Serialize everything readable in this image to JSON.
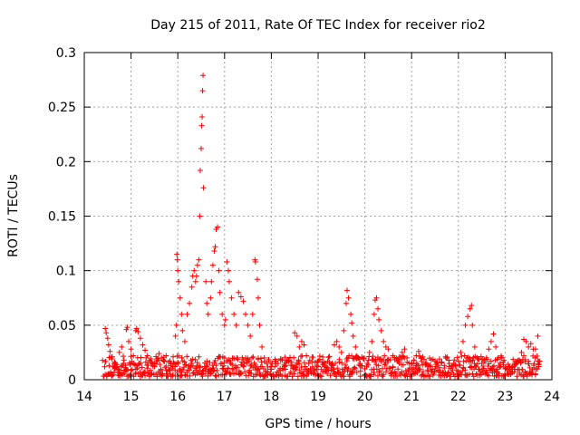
{
  "chart_data": {
    "type": "scatter",
    "title": "Day 215 of 2011, Rate Of TEC Index for receiver rio2",
    "xlabel": "GPS time / hours",
    "ylabel": "ROTI / TECUs",
    "xlim": [
      14,
      24
    ],
    "ylim": [
      0,
      0.3
    ],
    "x_ticks": [
      14,
      15,
      16,
      17,
      18,
      19,
      20,
      21,
      22,
      23,
      24
    ],
    "y_ticks": [
      0,
      0.05,
      0.1,
      0.15,
      0.2,
      0.25,
      0.3
    ],
    "x_tick_labels": [
      "14",
      "15",
      "16",
      "17",
      "18",
      "19",
      "20",
      "21",
      "22",
      "23",
      "24"
    ],
    "y_tick_labels": [
      "0",
      "0.05",
      "0.1",
      "0.15",
      "0.2",
      "0.25",
      "0.3"
    ],
    "grid": true,
    "marker": "+",
    "color": "#ff0000",
    "series": [
      {
        "name": "rio2",
        "points": [
          [
            14.45,
            0.047
          ],
          [
            14.47,
            0.043
          ],
          [
            14.5,
            0.038
          ],
          [
            14.52,
            0.032
          ],
          [
            14.55,
            0.026
          ],
          [
            14.6,
            0.021
          ],
          [
            14.65,
            0.016
          ],
          [
            14.7,
            0.012
          ],
          [
            14.75,
            0.025
          ],
          [
            14.8,
            0.03
          ],
          [
            14.85,
            0.018
          ],
          [
            14.9,
            0.046
          ],
          [
            14.92,
            0.048
          ],
          [
            14.95,
            0.035
          ],
          [
            15.0,
            0.028
          ],
          [
            15.05,
            0.022
          ],
          [
            15.1,
            0.045
          ],
          [
            15.12,
            0.047
          ],
          [
            15.15,
            0.044
          ],
          [
            15.2,
            0.038
          ],
          [
            15.25,
            0.032
          ],
          [
            15.3,
            0.027
          ],
          [
            15.35,
            0.022
          ],
          [
            15.4,
            0.018
          ],
          [
            15.45,
            0.015
          ],
          [
            15.5,
            0.012
          ],
          [
            15.55,
            0.019
          ],
          [
            15.6,
            0.024
          ],
          [
            15.65,
            0.02
          ],
          [
            15.7,
            0.017
          ],
          [
            15.75,
            0.022
          ],
          [
            15.8,
            0.016
          ],
          [
            15.85,
            0.013
          ],
          [
            15.9,
            0.021
          ],
          [
            15.95,
            0.04
          ],
          [
            15.97,
            0.05
          ],
          [
            15.98,
            0.115
          ],
          [
            15.99,
            0.11
          ],
          [
            16.0,
            0.1
          ],
          [
            16.02,
            0.09
          ],
          [
            16.05,
            0.075
          ],
          [
            16.08,
            0.06
          ],
          [
            16.1,
            0.045
          ],
          [
            16.15,
            0.035
          ],
          [
            16.2,
            0.06
          ],
          [
            16.25,
            0.07
          ],
          [
            16.3,
            0.085
          ],
          [
            16.32,
            0.095
          ],
          [
            16.35,
            0.1
          ],
          [
            16.38,
            0.09
          ],
          [
            16.4,
            0.095
          ],
          [
            16.42,
            0.105
          ],
          [
            16.45,
            0.11
          ],
          [
            16.47,
            0.15
          ],
          [
            16.48,
            0.192
          ],
          [
            16.5,
            0.212
          ],
          [
            16.51,
            0.233
          ],
          [
            16.52,
            0.241
          ],
          [
            16.53,
            0.265
          ],
          [
            16.54,
            0.279
          ],
          [
            16.55,
            0.176
          ],
          [
            16.6,
            0.09
          ],
          [
            16.62,
            0.07
          ],
          [
            16.65,
            0.06
          ],
          [
            16.7,
            0.075
          ],
          [
            16.72,
            0.09
          ],
          [
            16.75,
            0.105
          ],
          [
            16.78,
            0.118
          ],
          [
            16.8,
            0.122
          ],
          [
            16.82,
            0.138
          ],
          [
            16.85,
            0.14
          ],
          [
            16.88,
            0.1
          ],
          [
            16.9,
            0.08
          ],
          [
            16.95,
            0.06
          ],
          [
            17.0,
            0.05
          ],
          [
            17.02,
            0.055
          ],
          [
            17.05,
            0.108
          ],
          [
            17.08,
            0.1
          ],
          [
            17.1,
            0.09
          ],
          [
            17.15,
            0.075
          ],
          [
            17.2,
            0.06
          ],
          [
            17.25,
            0.05
          ],
          [
            17.3,
            0.08
          ],
          [
            17.35,
            0.076
          ],
          [
            17.4,
            0.072
          ],
          [
            17.45,
            0.06
          ],
          [
            17.5,
            0.05
          ],
          [
            17.55,
            0.04
          ],
          [
            17.6,
            0.06
          ],
          [
            17.65,
            0.11
          ],
          [
            17.66,
            0.108
          ],
          [
            17.7,
            0.092
          ],
          [
            17.72,
            0.075
          ],
          [
            17.75,
            0.05
          ],
          [
            17.8,
            0.03
          ],
          [
            17.85,
            0.02
          ],
          [
            17.9,
            0.015
          ],
          [
            18.0,
            0.012
          ],
          [
            18.1,
            0.015
          ],
          [
            18.2,
            0.018
          ],
          [
            18.3,
            0.013
          ],
          [
            18.4,
            0.02
          ],
          [
            18.5,
            0.043
          ],
          [
            18.55,
            0.04
          ],
          [
            18.6,
            0.03
          ],
          [
            18.65,
            0.035
          ],
          [
            18.7,
            0.032
          ],
          [
            18.75,
            0.022
          ],
          [
            18.8,
            0.015
          ],
          [
            18.9,
            0.01
          ],
          [
            19.0,
            0.012
          ],
          [
            19.1,
            0.014
          ],
          [
            19.2,
            0.011
          ],
          [
            19.3,
            0.015
          ],
          [
            19.35,
            0.032
          ],
          [
            19.4,
            0.035
          ],
          [
            19.45,
            0.03
          ],
          [
            19.5,
            0.025
          ],
          [
            19.55,
            0.045
          ],
          [
            19.6,
            0.07
          ],
          [
            19.62,
            0.082
          ],
          [
            19.65,
            0.075
          ],
          [
            19.7,
            0.06
          ],
          [
            19.72,
            0.052
          ],
          [
            19.75,
            0.04
          ],
          [
            19.8,
            0.03
          ],
          [
            19.85,
            0.02
          ],
          [
            19.9,
            0.015
          ],
          [
            20.0,
            0.01
          ],
          [
            20.05,
            0.015
          ],
          [
            20.1,
            0.025
          ],
          [
            20.15,
            0.035
          ],
          [
            20.2,
            0.06
          ],
          [
            20.22,
            0.073
          ],
          [
            20.25,
            0.075
          ],
          [
            20.28,
            0.065
          ],
          [
            20.3,
            0.055
          ],
          [
            20.35,
            0.045
          ],
          [
            20.4,
            0.035
          ],
          [
            20.45,
            0.03
          ],
          [
            20.5,
            0.028
          ],
          [
            20.6,
            0.022
          ],
          [
            20.7,
            0.018
          ],
          [
            20.8,
            0.025
          ],
          [
            20.85,
            0.028
          ],
          [
            20.9,
            0.02
          ],
          [
            21.0,
            0.015
          ],
          [
            21.05,
            0.018
          ],
          [
            21.1,
            0.022
          ],
          [
            21.15,
            0.026
          ],
          [
            21.2,
            0.02
          ],
          [
            21.3,
            0.015
          ],
          [
            21.4,
            0.012
          ],
          [
            21.5,
            0.01
          ],
          [
            21.6,
            0.011
          ],
          [
            21.7,
            0.013
          ],
          [
            21.8,
            0.012
          ],
          [
            21.9,
            0.015
          ],
          [
            22.0,
            0.017
          ],
          [
            22.05,
            0.025
          ],
          [
            22.1,
            0.035
          ],
          [
            22.15,
            0.05
          ],
          [
            22.2,
            0.058
          ],
          [
            22.25,
            0.065
          ],
          [
            22.28,
            0.068
          ],
          [
            22.3,
            0.05
          ],
          [
            22.35,
            0.03
          ],
          [
            22.4,
            0.02
          ],
          [
            22.5,
            0.015
          ],
          [
            22.55,
            0.018
          ],
          [
            22.6,
            0.02
          ],
          [
            22.65,
            0.028
          ],
          [
            22.7,
            0.035
          ],
          [
            22.75,
            0.042
          ],
          [
            22.8,
            0.03
          ],
          [
            22.85,
            0.02
          ],
          [
            22.9,
            0.012
          ],
          [
            23.0,
            0.01
          ],
          [
            23.1,
            0.012
          ],
          [
            23.2,
            0.015
          ],
          [
            23.3,
            0.018
          ],
          [
            23.35,
            0.025
          ],
          [
            23.4,
            0.037
          ],
          [
            23.45,
            0.035
          ],
          [
            23.5,
            0.03
          ],
          [
            23.55,
            0.033
          ],
          [
            23.6,
            0.028
          ],
          [
            23.65,
            0.028
          ],
          [
            23.7,
            0.04
          ],
          [
            23.72,
            0.012
          ]
        ],
        "baseline_band": {
          "x_range": [
            14.4,
            23.75
          ],
          "y_range": [
            0.003,
            0.022
          ]
        }
      }
    ]
  }
}
